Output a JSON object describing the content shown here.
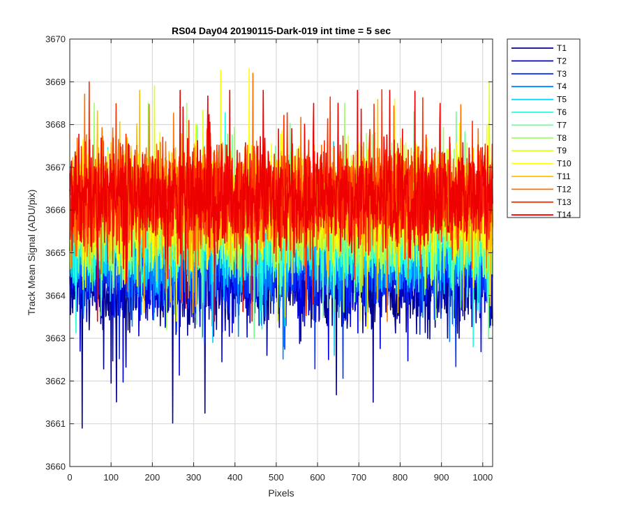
{
  "chart_data": {
    "type": "line",
    "title": "RS04 Day04 20190115-Dark-019 int time = 5 sec",
    "xlabel": "Pixels",
    "ylabel": "Track Mean Signal (ADU/pix)",
    "xlim": [
      0,
      1024
    ],
    "ylim": [
      3660,
      3670
    ],
    "xticks": [
      "0",
      "100",
      "200",
      "300",
      "400",
      "500",
      "600",
      "700",
      "800",
      "900",
      "1000"
    ],
    "yticks": [
      "3660",
      "3661",
      "3662",
      "3663",
      "3664",
      "3665",
      "3666",
      "3667",
      "3668",
      "3669",
      "3670"
    ],
    "grid": true,
    "legend_position": "outside-top-right",
    "n_points": 1024,
    "series": [
      {
        "name": "T1",
        "color": "#00008F",
        "mean": 3664.3,
        "spread": 0.55,
        "min": 3660.9,
        "max": 3666.6
      },
      {
        "name": "T2",
        "color": "#0000DF",
        "mean": 3664.6,
        "spread": 0.55,
        "min": 3661.5,
        "max": 3666.8
      },
      {
        "name": "T3",
        "color": "#0030FF",
        "mean": 3664.8,
        "spread": 0.55,
        "min": 3661.8,
        "max": 3667.0
      },
      {
        "name": "T4",
        "color": "#0080FF",
        "mean": 3665.0,
        "spread": 0.55,
        "min": 3662.2,
        "max": 3667.2
      },
      {
        "name": "T5",
        "color": "#00CFFF",
        "mean": 3665.2,
        "spread": 0.55,
        "min": 3662.6,
        "max": 3667.6
      },
      {
        "name": "T6",
        "color": "#20FFDF",
        "mean": 3665.4,
        "spread": 0.55,
        "min": 3662.8,
        "max": 3669.1
      },
      {
        "name": "T7",
        "color": "#70FF8F",
        "mean": 3665.6,
        "spread": 0.55,
        "min": 3663.0,
        "max": 3668.3
      },
      {
        "name": "T8",
        "color": "#9FFF60",
        "mean": 3665.8,
        "spread": 0.55,
        "min": 3663.2,
        "max": 3668.5
      },
      {
        "name": "T9",
        "color": "#DFFF20",
        "mean": 3666.0,
        "spread": 0.6,
        "min": 3663.4,
        "max": 3669.7
      },
      {
        "name": "T10",
        "color": "#FFFF00",
        "mean": 3666.1,
        "spread": 0.6,
        "min": 3661.9,
        "max": 3669.6
      },
      {
        "name": "T11",
        "color": "#FFBF00",
        "mean": 3666.2,
        "spread": 0.6,
        "min": 3663.6,
        "max": 3669.8
      },
      {
        "name": "T12",
        "color": "#FF7000",
        "mean": 3666.3,
        "spread": 0.6,
        "min": 3663.0,
        "max": 3669.2
      },
      {
        "name": "T13",
        "color": "#FF3000",
        "mean": 3666.3,
        "spread": 0.6,
        "min": 3663.2,
        "max": 3669.0
      },
      {
        "name": "T14",
        "color": "#EF0000",
        "mean": 3666.3,
        "spread": 0.6,
        "min": 3663.4,
        "max": 3668.8
      }
    ]
  }
}
